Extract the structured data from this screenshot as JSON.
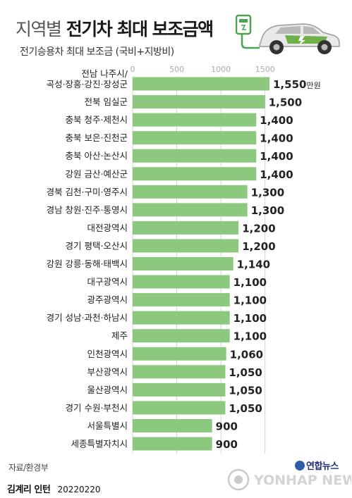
{
  "header": {
    "title_light": "지역별",
    "title_bold": "전기차 최대 보조금액",
    "subtitle": "전기승용차 최대 보조금 (국비+지방비)"
  },
  "colors": {
    "bar": "#8cc97e",
    "grid": "#c9c9c9",
    "tick": "#aaaaaa",
    "text": "#222222"
  },
  "chart_data": {
    "type": "bar",
    "orientation": "horizontal",
    "title": "지역별 전기차 최대 보조금액",
    "subtitle": "전기승용차 최대 보조금 (국비+지방비)",
    "unit": "만원",
    "xlim": [
      0,
      1550
    ],
    "ticks": [
      "0",
      "500",
      "1000",
      "1500"
    ],
    "tick_values": [
      0,
      500,
      1000,
      1500
    ],
    "grid": true,
    "categories": [
      [
        "전남 나주시/",
        "곡성·장흥·강진·장성군"
      ],
      [
        "전북 임실군"
      ],
      [
        "충북 청주·제천시"
      ],
      [
        "충북 보은·진천군"
      ],
      [
        "충북 아산·논산시"
      ],
      [
        "강원 금산·예산군"
      ],
      [
        "경북 김천·구미·영주시"
      ],
      [
        "경남 창원·진주·통영시"
      ],
      [
        "대전광역시"
      ],
      [
        "경기 평택·오산시"
      ],
      [
        "강원 강릉·동해·태백시"
      ],
      [
        "대구광역시"
      ],
      [
        "광주광역시"
      ],
      [
        "경기 성남·과천·하남시"
      ],
      [
        "제주"
      ],
      [
        "인천광역시"
      ],
      [
        "부산광역시"
      ],
      [
        "울산광역시"
      ],
      [
        "경기 수원·부천시"
      ],
      [
        "서울특별시"
      ],
      [
        "세종특별자치시"
      ]
    ],
    "values": [
      1550,
      1500,
      1400,
      1400,
      1400,
      1400,
      1300,
      1300,
      1200,
      1200,
      1140,
      1100,
      1100,
      1100,
      1100,
      1060,
      1050,
      1050,
      1050,
      900,
      900
    ],
    "labels": [
      "1,550",
      "1,500",
      "1,400",
      "1,400",
      "1,400",
      "1,400",
      "1,300",
      "1,300",
      "1,200",
      "1,200",
      "1,140",
      "1,100",
      "1,100",
      "1,100",
      "1,100",
      "1,060",
      "1,050",
      "1,050",
      "1,050",
      "900",
      "900"
    ]
  },
  "source": "자료/환경부",
  "footer": {
    "author": "김계리 인턴",
    "date": "20220220"
  },
  "logo": {
    "name": "연합뉴스",
    "watermark": "YONHAP NEWS"
  }
}
